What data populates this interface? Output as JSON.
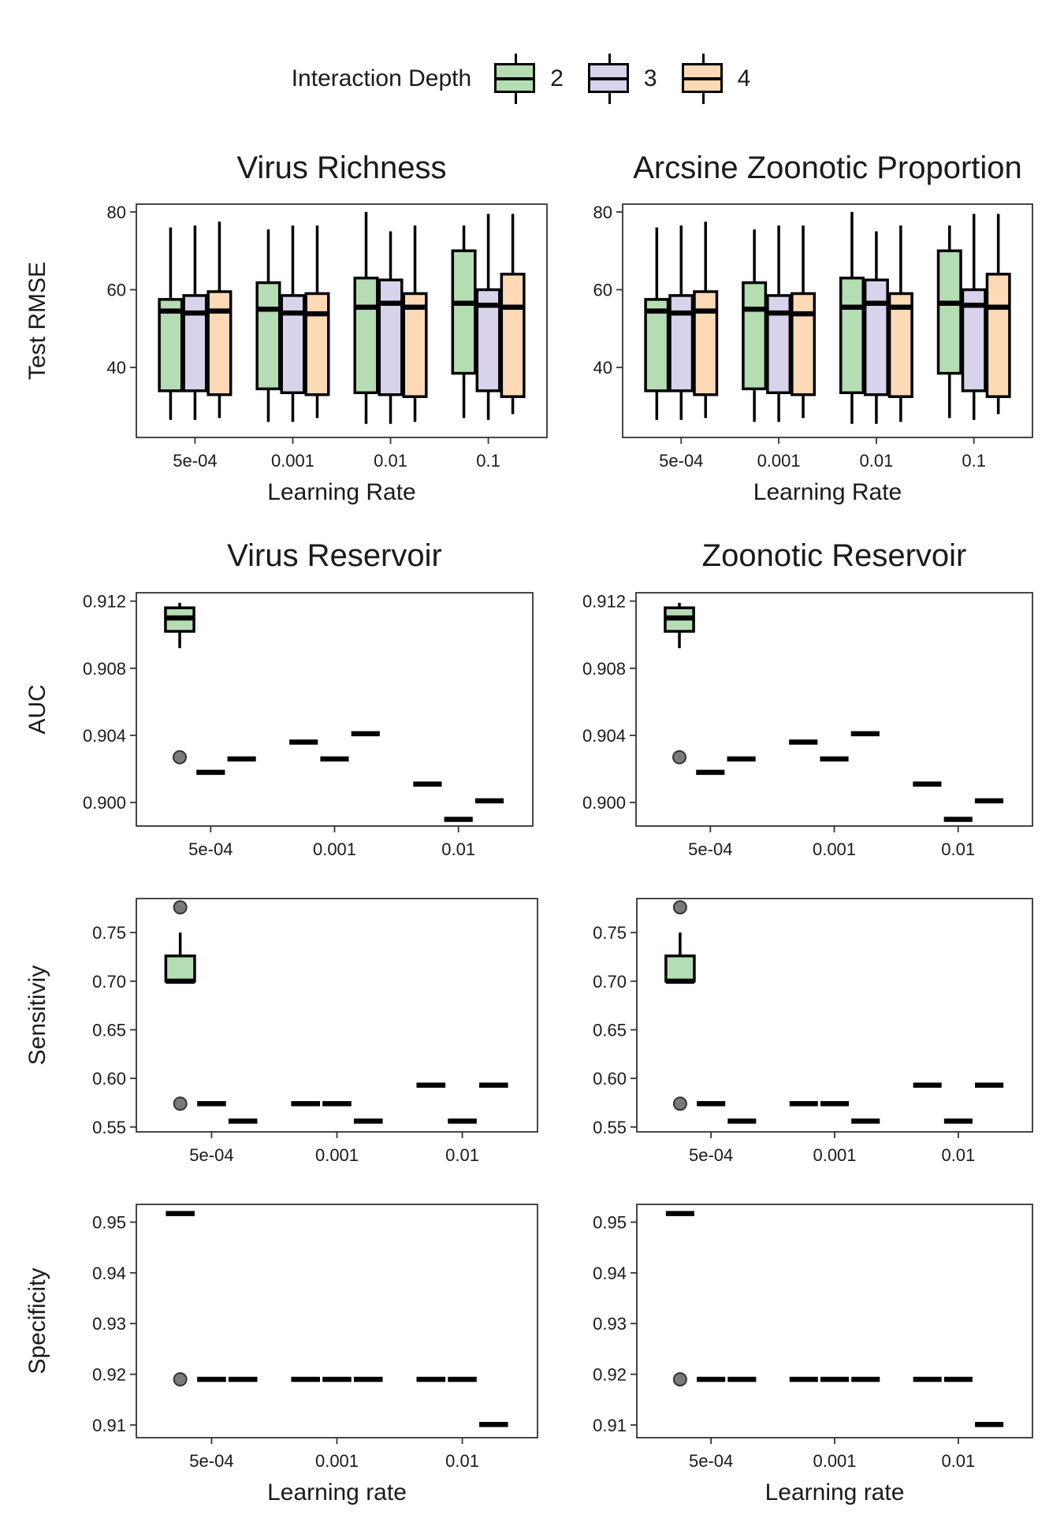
{
  "legend": {
    "title": "Interaction Depth",
    "items": [
      {
        "label": "2",
        "color": "#b5ddb3"
      },
      {
        "label": "3",
        "color": "#d8d2ea"
      },
      {
        "label": "4",
        "color": "#fdd9b5"
      }
    ]
  },
  "chart_data": [
    {
      "type": "boxplot",
      "title": "Virus Richness",
      "xlabel": "Learning Rate",
      "ylabel": "Test RMSE",
      "categories": [
        "5e-04",
        "0.001",
        "0.01",
        "0.1"
      ],
      "ylim": [
        22,
        82
      ],
      "yticks": [
        40,
        60,
        80
      ],
      "series": [
        {
          "name": "2",
          "boxes": [
            {
              "min": 26.5,
              "q1": 34,
              "median": 54.5,
              "q3": 57.5,
              "max": 76
            },
            {
              "min": 26,
              "q1": 34.5,
              "median": 55,
              "q3": 61.8,
              "max": 75.5
            },
            {
              "min": 25.5,
              "q1": 33.5,
              "median": 55.5,
              "q3": 63,
              "max": 80
            },
            {
              "min": 27,
              "q1": 38.5,
              "median": 56.5,
              "q3": 70,
              "max": 76.5
            }
          ]
        },
        {
          "name": "3",
          "boxes": [
            {
              "min": 26.5,
              "q1": 34,
              "median": 54,
              "q3": 58.5,
              "max": 76.5
            },
            {
              "min": 26,
              "q1": 33.5,
              "median": 54,
              "q3": 58.5,
              "max": 76.5
            },
            {
              "min": 25.5,
              "q1": 33,
              "median": 56.5,
              "q3": 62.5,
              "max": 75
            },
            {
              "min": 26.5,
              "q1": 34,
              "median": 56,
              "q3": 60,
              "max": 79.5
            }
          ]
        },
        {
          "name": "4",
          "boxes": [
            {
              "min": 27,
              "q1": 33,
              "median": 54.5,
              "q3": 59.5,
              "max": 77.5
            },
            {
              "min": 27,
              "q1": 33,
              "median": 53.8,
              "q3": 59,
              "max": 76.5
            },
            {
              "min": 26,
              "q1": 32.5,
              "median": 55.5,
              "q3": 59,
              "max": 76.5
            },
            {
              "min": 28,
              "q1": 32.5,
              "median": 55.5,
              "q3": 64,
              "max": 79.5
            }
          ]
        }
      ],
      "grid": false
    },
    {
      "type": "boxplot",
      "title": "Arcsine Zoonotic Proportion",
      "xlabel": "Learning Rate",
      "ylabel": "",
      "categories": [
        "5e-04",
        "0.001",
        "0.01",
        "0.1"
      ],
      "ylim": [
        22,
        82
      ],
      "yticks": [
        40,
        60,
        80
      ],
      "series": [
        {
          "name": "2",
          "boxes": [
            {
              "min": 26.5,
              "q1": 34,
              "median": 54.5,
              "q3": 57.5,
              "max": 76
            },
            {
              "min": 26,
              "q1": 34.5,
              "median": 55,
              "q3": 61.8,
              "max": 75.5
            },
            {
              "min": 25.5,
              "q1": 33.5,
              "median": 55.5,
              "q3": 63,
              "max": 80
            },
            {
              "min": 27,
              "q1": 38.5,
              "median": 56.5,
              "q3": 70,
              "max": 76.5
            }
          ]
        },
        {
          "name": "3",
          "boxes": [
            {
              "min": 26.5,
              "q1": 34,
              "median": 54,
              "q3": 58.5,
              "max": 76.5
            },
            {
              "min": 26,
              "q1": 33.5,
              "median": 54,
              "q3": 58.5,
              "max": 76.5
            },
            {
              "min": 25.5,
              "q1": 33,
              "median": 56.5,
              "q3": 62.5,
              "max": 75
            },
            {
              "min": 26.5,
              "q1": 34,
              "median": 56,
              "q3": 60,
              "max": 79.5
            }
          ]
        },
        {
          "name": "4",
          "boxes": [
            {
              "min": 27,
              "q1": 33,
              "median": 54.5,
              "q3": 59.5,
              "max": 77.5
            },
            {
              "min": 27,
              "q1": 33,
              "median": 53.8,
              "q3": 59,
              "max": 76.5
            },
            {
              "min": 26,
              "q1": 32.5,
              "median": 55.5,
              "q3": 59,
              "max": 76.5
            },
            {
              "min": 28,
              "q1": 32.5,
              "median": 55.5,
              "q3": 64,
              "max": 79.5
            }
          ]
        }
      ],
      "grid": false
    },
    {
      "type": "boxplot",
      "title": "Virus Reservoir",
      "xlabel": "",
      "ylabel": "AUC",
      "categories": [
        "5e-04",
        "0.001",
        "0.01"
      ],
      "ylim": [
        0.8986,
        0.9125
      ],
      "yticks": [
        0.9,
        0.904,
        0.908,
        0.912
      ],
      "ytick_labels": [
        "0.900",
        "0.904",
        "0.908",
        "0.912"
      ],
      "series": [
        {
          "name": "2",
          "boxes": [
            {
              "min": 0.9092,
              "q1": 0.9102,
              "median": 0.911,
              "q3": 0.9116,
              "max": 0.9119,
              "outliers": [
                0.9027
              ]
            },
            {
              "min": 0.9036,
              "q1": 0.9036,
              "median": 0.9036,
              "q3": 0.9036,
              "max": 0.9036
            },
            {
              "min": 0.9011,
              "q1": 0.9011,
              "median": 0.9011,
              "q3": 0.9011,
              "max": 0.9011
            }
          ]
        },
        {
          "name": "3",
          "boxes": [
            {
              "min": 0.9018,
              "q1": 0.9018,
              "median": 0.9018,
              "q3": 0.9018,
              "max": 0.9018
            },
            {
              "min": 0.9026,
              "q1": 0.9026,
              "median": 0.9026,
              "q3": 0.9026,
              "max": 0.9026
            },
            {
              "min": 0.899,
              "q1": 0.899,
              "median": 0.899,
              "q3": 0.899,
              "max": 0.899
            }
          ]
        },
        {
          "name": "4",
          "boxes": [
            {
              "min": 0.9026,
              "q1": 0.9026,
              "median": 0.9026,
              "q3": 0.9026,
              "max": 0.9026
            },
            {
              "min": 0.9041,
              "q1": 0.9041,
              "median": 0.9041,
              "q3": 0.9041,
              "max": 0.9041
            },
            {
              "min": 0.9001,
              "q1": 0.9001,
              "median": 0.9001,
              "q3": 0.9001,
              "max": 0.9001
            }
          ]
        }
      ],
      "grid": false
    },
    {
      "type": "boxplot",
      "title": "Zoonotic Reservoir",
      "xlabel": "",
      "ylabel": "",
      "categories": [
        "5e-04",
        "0.001",
        "0.01"
      ],
      "ylim": [
        0.8986,
        0.9125
      ],
      "yticks": [
        0.9,
        0.904,
        0.908,
        0.912
      ],
      "ytick_labels": [
        "0.900",
        "0.904",
        "0.908",
        "0.912"
      ],
      "series": [
        {
          "name": "2",
          "boxes": [
            {
              "min": 0.9092,
              "q1": 0.9102,
              "median": 0.911,
              "q3": 0.9116,
              "max": 0.9119,
              "outliers": [
                0.9027
              ]
            },
            {
              "min": 0.9036,
              "q1": 0.9036,
              "median": 0.9036,
              "q3": 0.9036,
              "max": 0.9036
            },
            {
              "min": 0.9011,
              "q1": 0.9011,
              "median": 0.9011,
              "q3": 0.9011,
              "max": 0.9011
            }
          ]
        },
        {
          "name": "3",
          "boxes": [
            {
              "min": 0.9018,
              "q1": 0.9018,
              "median": 0.9018,
              "q3": 0.9018,
              "max": 0.9018
            },
            {
              "min": 0.9026,
              "q1": 0.9026,
              "median": 0.9026,
              "q3": 0.9026,
              "max": 0.9026
            },
            {
              "min": 0.899,
              "q1": 0.899,
              "median": 0.899,
              "q3": 0.899,
              "max": 0.899
            }
          ]
        },
        {
          "name": "4",
          "boxes": [
            {
              "min": 0.9026,
              "q1": 0.9026,
              "median": 0.9026,
              "q3": 0.9026,
              "max": 0.9026
            },
            {
              "min": 0.9041,
              "q1": 0.9041,
              "median": 0.9041,
              "q3": 0.9041,
              "max": 0.9041
            },
            {
              "min": 0.9001,
              "q1": 0.9001,
              "median": 0.9001,
              "q3": 0.9001,
              "max": 0.9001
            }
          ]
        }
      ],
      "grid": false
    },
    {
      "type": "boxplot",
      "title": "",
      "xlabel": "",
      "ylabel": "Sensitiviy",
      "categories": [
        "5e-04",
        "0.001",
        "0.01"
      ],
      "ylim": [
        0.545,
        0.785
      ],
      "yticks": [
        0.55,
        0.6,
        0.65,
        0.7,
        0.75
      ],
      "ytick_labels": [
        "0.55",
        "0.60",
        "0.65",
        "0.70",
        "0.75"
      ],
      "series": [
        {
          "name": "2",
          "boxes": [
            {
              "min": 0.7,
              "q1": 0.7,
              "median": 0.7,
              "q3": 0.726,
              "max": 0.75,
              "outliers": [
                0.776,
                0.574
              ]
            },
            {
              "min": 0.574,
              "q1": 0.574,
              "median": 0.574,
              "q3": 0.574,
              "max": 0.574
            },
            {
              "min": 0.593,
              "q1": 0.593,
              "median": 0.593,
              "q3": 0.593,
              "max": 0.593
            }
          ]
        },
        {
          "name": "3",
          "boxes": [
            {
              "min": 0.574,
              "q1": 0.574,
              "median": 0.574,
              "q3": 0.574,
              "max": 0.574
            },
            {
              "min": 0.574,
              "q1": 0.574,
              "median": 0.574,
              "q3": 0.574,
              "max": 0.574
            },
            {
              "min": 0.556,
              "q1": 0.556,
              "median": 0.556,
              "q3": 0.556,
              "max": 0.556
            }
          ]
        },
        {
          "name": "4",
          "boxes": [
            {
              "min": 0.556,
              "q1": 0.556,
              "median": 0.556,
              "q3": 0.556,
              "max": 0.556
            },
            {
              "min": 0.556,
              "q1": 0.556,
              "median": 0.556,
              "q3": 0.556,
              "max": 0.556
            },
            {
              "min": 0.593,
              "q1": 0.593,
              "median": 0.593,
              "q3": 0.593,
              "max": 0.593
            }
          ]
        }
      ],
      "grid": false
    },
    {
      "type": "boxplot",
      "title": "",
      "xlabel": "",
      "ylabel": "",
      "categories": [
        "5e-04",
        "0.001",
        "0.01"
      ],
      "ylim": [
        0.545,
        0.785
      ],
      "yticks": [
        0.55,
        0.6,
        0.65,
        0.7,
        0.75
      ],
      "ytick_labels": [
        "0.55",
        "0.60",
        "0.65",
        "0.70",
        "0.75"
      ],
      "series": [
        {
          "name": "2",
          "boxes": [
            {
              "min": 0.7,
              "q1": 0.7,
              "median": 0.7,
              "q3": 0.726,
              "max": 0.75,
              "outliers": [
                0.776,
                0.574
              ]
            },
            {
              "min": 0.574,
              "q1": 0.574,
              "median": 0.574,
              "q3": 0.574,
              "max": 0.574
            },
            {
              "min": 0.593,
              "q1": 0.593,
              "median": 0.593,
              "q3": 0.593,
              "max": 0.593
            }
          ]
        },
        {
          "name": "3",
          "boxes": [
            {
              "min": 0.574,
              "q1": 0.574,
              "median": 0.574,
              "q3": 0.574,
              "max": 0.574
            },
            {
              "min": 0.574,
              "q1": 0.574,
              "median": 0.574,
              "q3": 0.574,
              "max": 0.574
            },
            {
              "min": 0.556,
              "q1": 0.556,
              "median": 0.556,
              "q3": 0.556,
              "max": 0.556
            }
          ]
        },
        {
          "name": "4",
          "boxes": [
            {
              "min": 0.556,
              "q1": 0.556,
              "median": 0.556,
              "q3": 0.556,
              "max": 0.556
            },
            {
              "min": 0.556,
              "q1": 0.556,
              "median": 0.556,
              "q3": 0.556,
              "max": 0.556
            },
            {
              "min": 0.593,
              "q1": 0.593,
              "median": 0.593,
              "q3": 0.593,
              "max": 0.593
            }
          ]
        }
      ],
      "grid": false
    },
    {
      "type": "boxplot",
      "title": "",
      "xlabel": "Learning rate",
      "ylabel": "Specificity",
      "categories": [
        "5e-04",
        "0.001",
        "0.01"
      ],
      "ylim": [
        0.9075,
        0.9535
      ],
      "yticks": [
        0.91,
        0.92,
        0.93,
        0.94,
        0.95
      ],
      "ytick_labels": [
        "0.91",
        "0.92",
        "0.93",
        "0.94",
        "0.95"
      ],
      "series": [
        {
          "name": "2",
          "boxes": [
            {
              "min": 0.9517,
              "q1": 0.9517,
              "median": 0.9517,
              "q3": 0.9517,
              "max": 0.9517,
              "outliers": [
                0.919
              ]
            },
            {
              "min": 0.919,
              "q1": 0.919,
              "median": 0.919,
              "q3": 0.919,
              "max": 0.919
            },
            {
              "min": 0.919,
              "q1": 0.919,
              "median": 0.919,
              "q3": 0.919,
              "max": 0.919
            }
          ]
        },
        {
          "name": "3",
          "boxes": [
            {
              "min": 0.919,
              "q1": 0.919,
              "median": 0.919,
              "q3": 0.919,
              "max": 0.919
            },
            {
              "min": 0.919,
              "q1": 0.919,
              "median": 0.919,
              "q3": 0.919,
              "max": 0.919
            },
            {
              "min": 0.919,
              "q1": 0.919,
              "median": 0.919,
              "q3": 0.919,
              "max": 0.919
            }
          ]
        },
        {
          "name": "4",
          "boxes": [
            {
              "min": 0.919,
              "q1": 0.919,
              "median": 0.919,
              "q3": 0.919,
              "max": 0.919
            },
            {
              "min": 0.919,
              "q1": 0.919,
              "median": 0.919,
              "q3": 0.919,
              "max": 0.919
            },
            {
              "min": 0.9101,
              "q1": 0.9101,
              "median": 0.9101,
              "q3": 0.9101,
              "max": 0.9101
            }
          ]
        }
      ],
      "grid": false
    },
    {
      "type": "boxplot",
      "title": "",
      "xlabel": "Learning rate",
      "ylabel": "",
      "categories": [
        "5e-04",
        "0.001",
        "0.01"
      ],
      "ylim": [
        0.9075,
        0.9535
      ],
      "yticks": [
        0.91,
        0.92,
        0.93,
        0.94,
        0.95
      ],
      "ytick_labels": [
        "0.91",
        "0.92",
        "0.93",
        "0.94",
        "0.95"
      ],
      "series": [
        {
          "name": "2",
          "boxes": [
            {
              "min": 0.9517,
              "q1": 0.9517,
              "median": 0.9517,
              "q3": 0.9517,
              "max": 0.9517,
              "outliers": [
                0.919
              ]
            },
            {
              "min": 0.919,
              "q1": 0.919,
              "median": 0.919,
              "q3": 0.919,
              "max": 0.919
            },
            {
              "min": 0.919,
              "q1": 0.919,
              "median": 0.919,
              "q3": 0.919,
              "max": 0.919
            }
          ]
        },
        {
          "name": "3",
          "boxes": [
            {
              "min": 0.919,
              "q1": 0.919,
              "median": 0.919,
              "q3": 0.919,
              "max": 0.919
            },
            {
              "min": 0.919,
              "q1": 0.919,
              "median": 0.919,
              "q3": 0.919,
              "max": 0.919
            },
            {
              "min": 0.919,
              "q1": 0.919,
              "median": 0.919,
              "q3": 0.919,
              "max": 0.919
            }
          ]
        },
        {
          "name": "4",
          "boxes": [
            {
              "min": 0.919,
              "q1": 0.919,
              "median": 0.919,
              "q3": 0.919,
              "max": 0.919
            },
            {
              "min": 0.919,
              "q1": 0.919,
              "median": 0.919,
              "q3": 0.919,
              "max": 0.919
            },
            {
              "min": 0.9101,
              "q1": 0.9101,
              "median": 0.9101,
              "q3": 0.9101,
              "max": 0.9101
            }
          ]
        }
      ],
      "grid": false
    }
  ]
}
